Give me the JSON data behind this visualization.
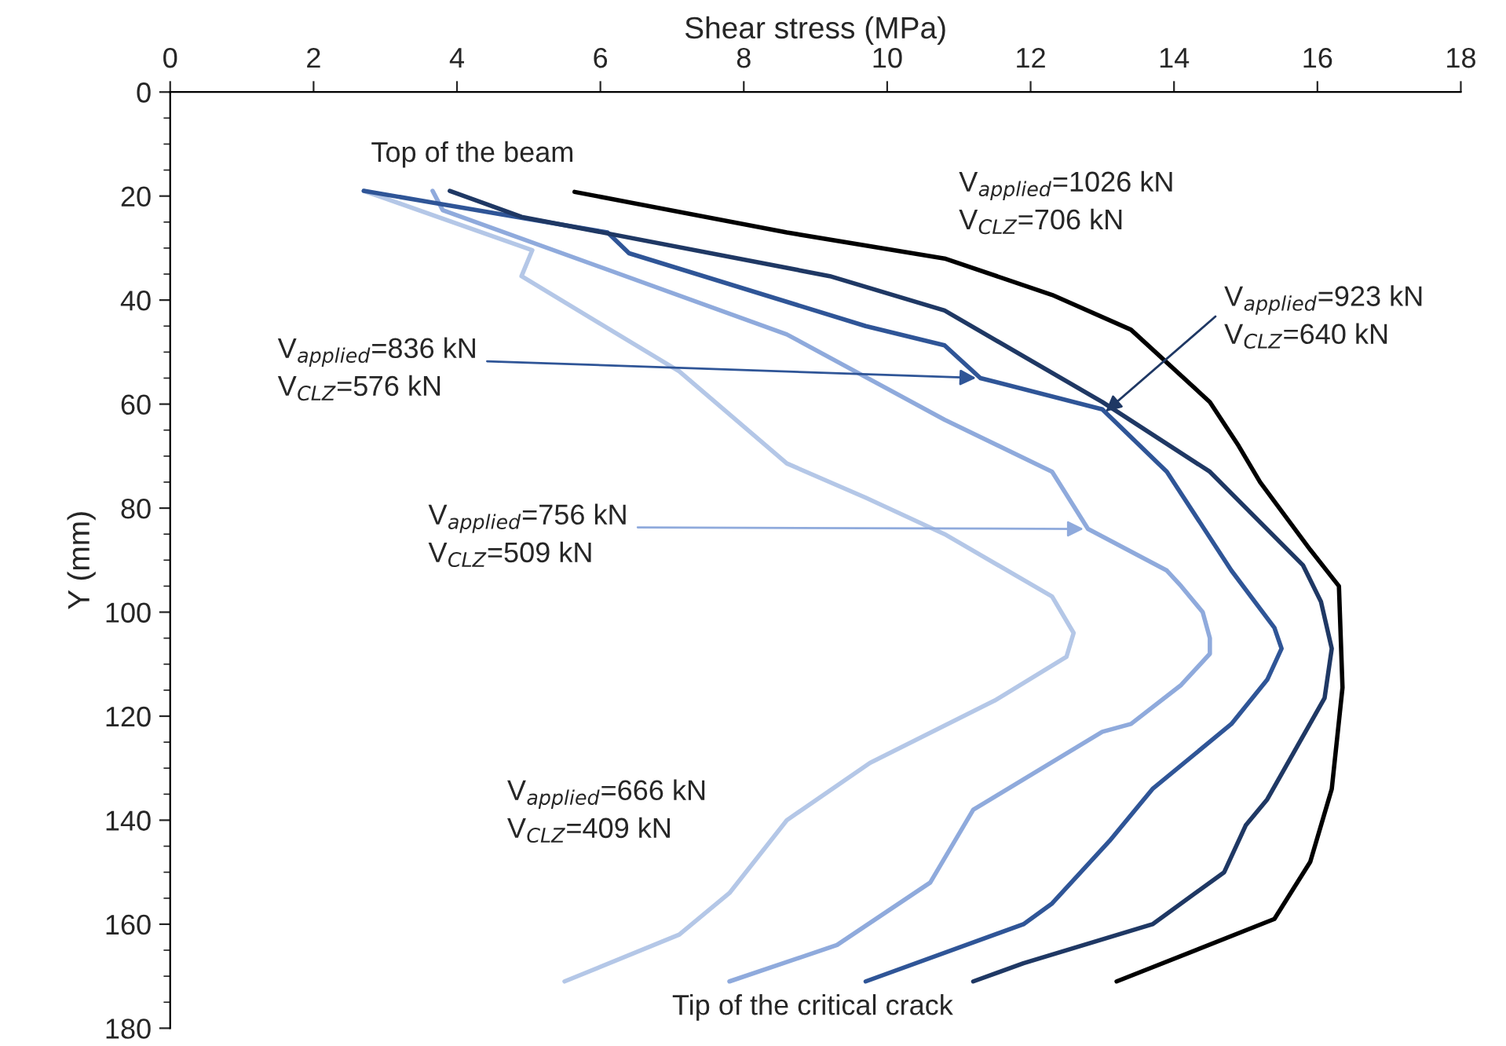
{
  "chart_data": {
    "type": "line",
    "xlabel": "Shear stress (MPa)",
    "ylabel": "Y (mm)",
    "xlim": [
      0,
      18
    ],
    "xticks": [
      0,
      2,
      4,
      6,
      8,
      10,
      12,
      14,
      16,
      18
    ],
    "ylim": [
      180,
      0
    ],
    "yticks": [
      0,
      20,
      40,
      60,
      80,
      100,
      120,
      140,
      160,
      180
    ],
    "grid": false,
    "marker": "none",
    "line_style": "solid",
    "series": [
      {
        "color": "#b4c7e7",
        "x": [
          2.7,
          5.05,
          4.9,
          7.1,
          8.6,
          9.7,
          10.8,
          12.3,
          12.6,
          12.5,
          11.5,
          9.76,
          8.6,
          7.8,
          7.1,
          5.5
        ],
        "values": [
          19,
          30.4,
          35.4,
          53.7,
          71.4,
          78,
          85,
          97,
          104,
          108.6,
          117,
          129,
          140,
          154,
          162,
          171
        ]
      },
      {
        "color": "#8faadc",
        "x": [
          3.66,
          3.8,
          8.6,
          10.8,
          12.3,
          12.8,
          13.9,
          14.1,
          14.4,
          14.5,
          14.5,
          14.1,
          13.4,
          13.0,
          11.2,
          10.6,
          9.3,
          7.8
        ],
        "values": [
          19,
          22.7,
          46.6,
          63,
          73,
          84,
          92,
          95,
          100,
          105,
          108,
          114,
          121.5,
          123,
          138,
          152,
          164,
          171
        ]
      },
      {
        "color": "#2f5597",
        "x": [
          2.7,
          6.1,
          6.4,
          9.7,
          10.8,
          11.3,
          13.0,
          13.9,
          14.8,
          15.4,
          15.5,
          15.3,
          14.8,
          13.7,
          13.1,
          12.3,
          11.9,
          9.7
        ],
        "values": [
          19,
          27,
          31,
          45,
          48.7,
          55,
          61,
          73,
          92,
          103,
          107,
          113,
          121.5,
          134,
          144,
          156,
          160,
          171
        ]
      },
      {
        "color": "#1f3864",
        "x": [
          3.9,
          4.9,
          9.2,
          10.8,
          13.0,
          14.5,
          15.8,
          16.05,
          16.2,
          16.1,
          15.3,
          15.0,
          14.7,
          13.7,
          11.9,
          11.2
        ],
        "values": [
          19,
          24,
          35.4,
          42,
          59.6,
          73,
          91,
          98,
          107,
          116.5,
          136,
          141,
          150,
          160,
          167.5,
          171
        ]
      },
      {
        "color": "#000000",
        "x": [
          5.64,
          8.6,
          10.8,
          12.3,
          13.4,
          14.5,
          14.9,
          15.2,
          15.9,
          16.3,
          16.35,
          16.2,
          15.9,
          15.4,
          13.2
        ],
        "values": [
          19.2,
          27,
          32,
          39,
          45.7,
          59.6,
          68,
          75,
          88,
          95,
          114.5,
          134,
          148,
          159,
          171
        ]
      }
    ],
    "annotations": [
      "Top of the beam",
      "V$_{applied}$=1026 kN",
      "V$_{CLZ}$=706 kN",
      {
        "text": "V$_{applied}$=923 kN",
        "x": 13.0,
        "y": 62
      },
      "V$_{CLZ}$=640 kN",
      {
        "text": "V$_{applied}$=836 kN",
        "x": 11.3,
        "y": 55
      },
      "V$_{CLZ}$=576 kN",
      {
        "text": "V$_{applied}$=756 kN",
        "x": 12.8,
        "y": 84
      },
      "V$_{CLZ}$=509 kN",
      "V$_{applied}$=666 kN",
      "V$_{CLZ}$=409 kN",
      "Tip of the critical crack"
    ]
  }
}
